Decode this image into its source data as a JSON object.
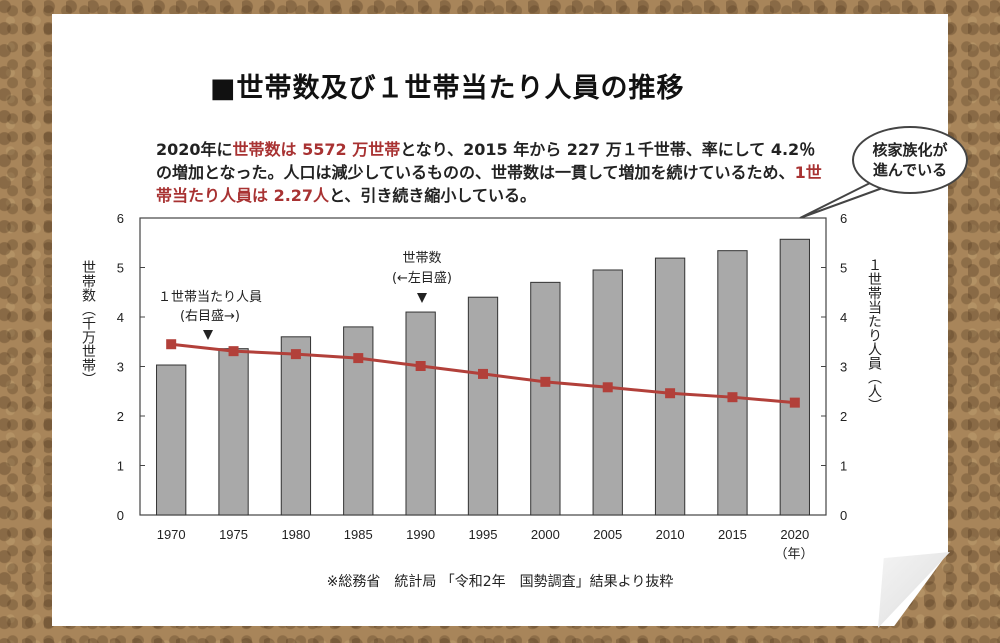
{
  "title": "■世帯数及び１世帯当たり人員の推移",
  "description": {
    "p1": "2020年に",
    "h1": "世帯数は 5572 万世帯",
    "p2": "となり、2015 年から 227 万１千世帯、率にして 4.2％の増加となった。人口は減少しているものの、世帯数は一貫して増加を続けているため、",
    "h2": "1世帯当たり人員は 2.27人",
    "p3": "と、引き続き縮小している。"
  },
  "bubble": {
    "line1": "核家族化が",
    "line2": "進んでいる"
  },
  "source": "※総務省　統計局 「令和2年　国勢調査」結果より抜粋",
  "colors": {
    "bar": "#a9a9a9",
    "line": "#b2403a",
    "highlight": "#a83232"
  },
  "chart_data": {
    "type": "bar",
    "categories": [
      "1970",
      "1975",
      "1980",
      "1985",
      "1990",
      "1995",
      "2000",
      "2005",
      "2010",
      "2015",
      "2020"
    ],
    "x_unit_label": "（年）",
    "series": [
      {
        "name": "世帯数",
        "type": "bar",
        "axis": "left",
        "values": [
          3.03,
          3.36,
          3.6,
          3.8,
          4.1,
          4.4,
          4.7,
          4.95,
          5.19,
          5.34,
          5.57
        ]
      },
      {
        "name": "1世帯当たり人員",
        "type": "line",
        "axis": "right",
        "values": [
          3.45,
          3.31,
          3.25,
          3.17,
          3.01,
          2.85,
          2.69,
          2.58,
          2.46,
          2.38,
          2.27
        ]
      }
    ],
    "ylabel_left": "世帯数（千万世帯）",
    "ylabel_right": "１世帯当たり人員（人）",
    "ylim_left": [
      0,
      6
    ],
    "ylim_right": [
      0,
      6
    ],
    "yticks": [
      "0",
      "1",
      "2",
      "3",
      "4",
      "5",
      "6"
    ],
    "annotations": {
      "bar_note_1": "世帯数",
      "bar_note_2": "(←左目盛)",
      "line_note_1": "１世帯当たり人員",
      "line_note_2": "(右目盛→)"
    },
    "grid": false
  }
}
